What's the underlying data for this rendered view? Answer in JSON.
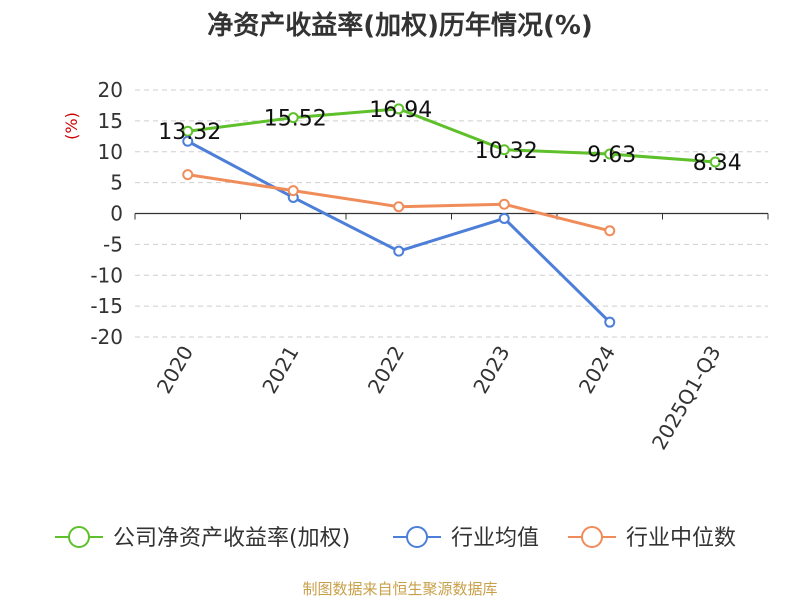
{
  "chart_data": {
    "type": "line",
    "title": "净资产收益率(加权)历年情况(%)",
    "ylabel": "(%)",
    "categories": [
      "2020",
      "2021",
      "2022",
      "2023",
      "2024",
      "2025Q1-Q3"
    ],
    "ylim": [
      -20,
      20
    ],
    "yticks": [
      20,
      15,
      10,
      5,
      0,
      -5,
      -10,
      -15,
      -20
    ],
    "grid": true,
    "legend_position": "bottom",
    "series": [
      {
        "name": "公司净资产收益率(加权)",
        "color": "#5ec02a",
        "values": [
          13.32,
          15.52,
          16.94,
          10.32,
          9.63,
          8.34
        ],
        "labels": [
          "13.32",
          "15.52",
          "16.94",
          "10.32",
          "9.63",
          "8.34"
        ]
      },
      {
        "name": "行业均值",
        "color": "#4d7fd9",
        "values": [
          11.7,
          2.6,
          -6.1,
          -0.8,
          -17.6,
          null
        ]
      },
      {
        "name": "行业中位数",
        "color": "#f08c5a",
        "values": [
          6.3,
          3.7,
          1.1,
          1.5,
          -2.8,
          null
        ]
      }
    ]
  },
  "source": "制图数据来自恒生聚源数据库"
}
